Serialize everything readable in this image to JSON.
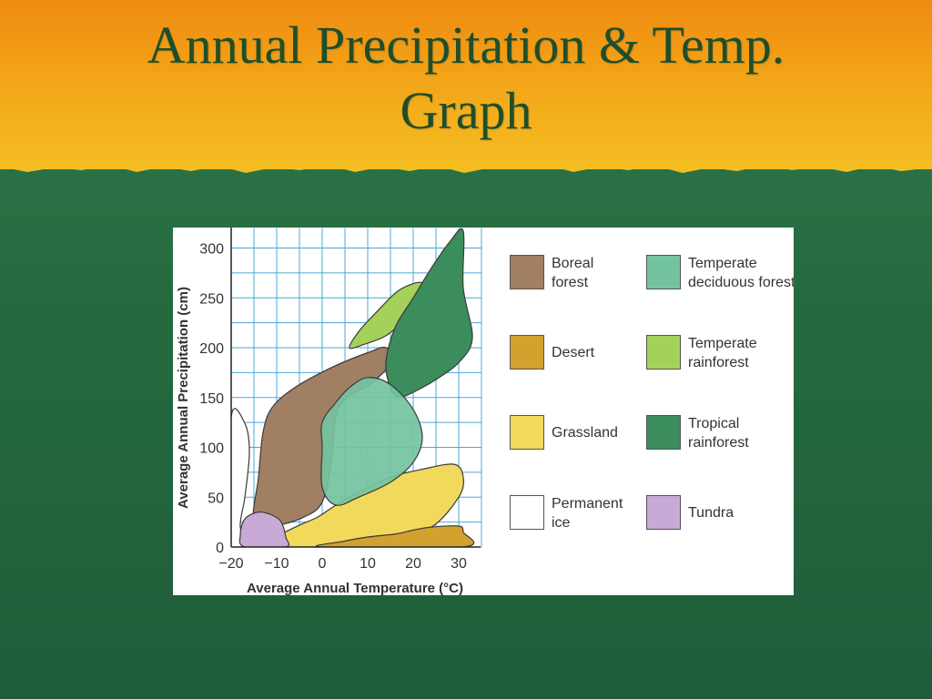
{
  "slide": {
    "title_line1": "Annual Precipitation & Temp.",
    "title_line2": "Graph",
    "colors": {
      "header_top": "#ee8a10",
      "header_bottom": "#f4be22",
      "background": "#246a3f",
      "title": "#1e4f2b"
    }
  },
  "chart_data": {
    "type": "area",
    "xlabel": "Average Annual Temperature (°C)",
    "ylabel": "Average Annual Precipitation (cm)",
    "xlim": [
      -20,
      35
    ],
    "ylim": [
      0,
      320
    ],
    "x_ticks": [
      "−20",
      "−10",
      "0",
      "10",
      "20",
      "30"
    ],
    "x_tick_values": [
      -20,
      -10,
      0,
      10,
      20,
      30
    ],
    "y_ticks": [
      "0",
      "50",
      "100",
      "150",
      "200",
      "250",
      "300"
    ],
    "y_tick_values": [
      0,
      50,
      100,
      150,
      200,
      250,
      300
    ],
    "grid": true,
    "legend_placement": "right",
    "series": [
      {
        "name": "Boreal\nforest",
        "color": "#a07f63",
        "points": [
          [
            -15,
            25
          ],
          [
            -14,
            70
          ],
          [
            -13,
            115
          ],
          [
            -11,
            140
          ],
          [
            -6,
            160
          ],
          [
            2,
            180
          ],
          [
            10,
            195
          ],
          [
            14,
            200
          ],
          [
            15,
            185
          ],
          [
            11,
            165
          ],
          [
            5,
            148
          ],
          [
            3,
            130
          ],
          [
            2,
            85
          ],
          [
            0,
            45
          ],
          [
            -4,
            30
          ],
          [
            -10,
            22
          ]
        ]
      },
      {
        "name": "Desert",
        "color": "#d3a12d",
        "points": [
          [
            0,
            0
          ],
          [
            5,
            6
          ],
          [
            10,
            10
          ],
          [
            16,
            13
          ],
          [
            20,
            17
          ],
          [
            24,
            20
          ],
          [
            30,
            21
          ],
          [
            31,
            15
          ],
          [
            31,
            0
          ]
        ]
      },
      {
        "name": "Grassland",
        "color": "#f1d95c",
        "points": [
          [
            -11,
            0
          ],
          [
            -10,
            10
          ],
          [
            -5,
            22
          ],
          [
            -1,
            30
          ],
          [
            3,
            42
          ],
          [
            8,
            55
          ],
          [
            15,
            70
          ],
          [
            22,
            78
          ],
          [
            29,
            83
          ],
          [
            31,
            70
          ],
          [
            30,
            50
          ],
          [
            24,
            20
          ],
          [
            16,
            13
          ],
          [
            10,
            10
          ],
          [
            5,
            6
          ],
          [
            0,
            0
          ]
        ]
      },
      {
        "name": "Permanent\nice",
        "color": "#ffffff",
        "points": [
          [
            -20,
            130
          ],
          [
            -17,
            124
          ],
          [
            -16,
            95
          ],
          [
            -17,
            50
          ],
          [
            -18,
            20
          ],
          [
            -16,
            0
          ],
          [
            -20,
            0
          ]
        ]
      },
      {
        "name": "Temperate\ndeciduous forest",
        "color": "#74c3a0",
        "points": [
          [
            0,
            100
          ],
          [
            0,
            125
          ],
          [
            3,
            145
          ],
          [
            6,
            160
          ],
          [
            10,
            170
          ],
          [
            15,
            163
          ],
          [
            20,
            138
          ],
          [
            22,
            110
          ],
          [
            20,
            85
          ],
          [
            15,
            65
          ],
          [
            8,
            50
          ],
          [
            3,
            42
          ],
          [
            0,
            60
          ]
        ]
      },
      {
        "name": "Temperate\nrainforest",
        "color": "#a4d159",
        "points": [
          [
            6,
            200
          ],
          [
            8,
            216
          ],
          [
            12,
            236
          ],
          [
            17,
            258
          ],
          [
            22,
            265
          ],
          [
            21,
            245
          ],
          [
            18,
            228
          ],
          [
            14,
            212
          ],
          [
            9,
            203
          ]
        ]
      },
      {
        "name": "Tropical\nrainforest",
        "color": "#3b8d5c",
        "points": [
          [
            14,
            185
          ],
          [
            16,
            220
          ],
          [
            20,
            250
          ],
          [
            24,
            280
          ],
          [
            28,
            306
          ],
          [
            31,
            317
          ],
          [
            31,
            260
          ],
          [
            33,
            210
          ],
          [
            30,
            185
          ],
          [
            25,
            168
          ],
          [
            22,
            160
          ],
          [
            17,
            150
          ],
          [
            15,
            160
          ]
        ]
      },
      {
        "name": "Tundra",
        "color": "#c9a9d6",
        "points": [
          [
            -17,
            0
          ],
          [
            -18,
            12
          ],
          [
            -17,
            28
          ],
          [
            -14,
            35
          ],
          [
            -11,
            32
          ],
          [
            -9,
            25
          ],
          [
            -8,
            10
          ],
          [
            -8,
            0
          ]
        ]
      }
    ]
  }
}
